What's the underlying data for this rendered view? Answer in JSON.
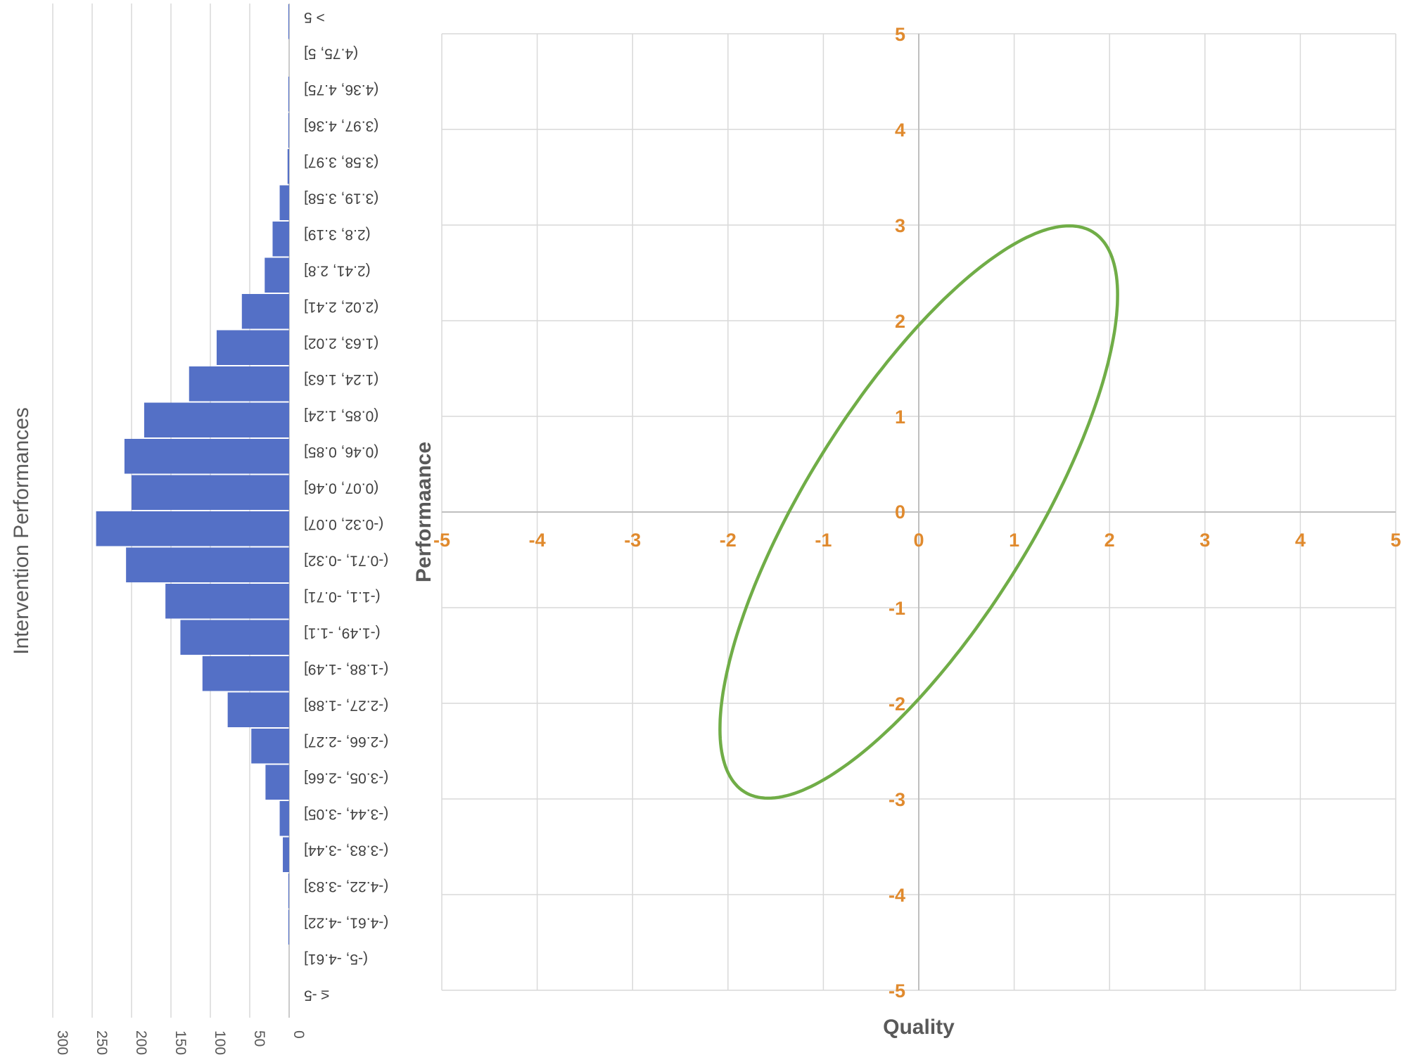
{
  "chart_data": [
    {
      "type": "bar",
      "orientation": "horizontal",
      "title": "",
      "ylabel": "Intervention Performances",
      "xlim": [
        0,
        300
      ],
      "x_ticks": [
        "0",
        "50",
        "100",
        "150",
        "200",
        "250",
        "300"
      ],
      "grid": true,
      "bar_color": "#5470c6",
      "categories": [
        "> 5",
        "(4.75, 5]",
        "(4.36, 4.75]",
        "(3.97, 4.36]",
        "(3.58, 3.97]",
        "(3.19, 3.58]",
        "(2.8, 3.19]",
        "(2.41, 2.8]",
        "(2.02, 2.41]",
        "(1.63, 2.02]",
        "(1.24, 1.63]",
        "(0.85, 1.24]",
        "(0.46, 0.85]",
        "(0.07, 0.46]",
        "(-0.32, 0.07]",
        "(-0.71, -0.32]",
        "(-1.1, -0.71]",
        "(-1.49, -1.1]",
        "(-1.88, -1.49]",
        "(-2.27, -1.88]",
        "(-2.66, -2.27]",
        "(-3.05, -2.66]",
        "(-3.44, -3.05]",
        "(-3.83, -3.44]",
        "(-4.22, -3.83]",
        "(-4.61, -4.22]",
        "(-5, -4.61]",
        "≤ -5"
      ],
      "values": [
        1,
        0,
        1,
        1,
        2,
        12,
        21,
        31,
        60,
        92,
        127,
        184,
        209,
        200,
        245,
        207,
        157,
        138,
        110,
        78,
        48,
        30,
        12,
        8,
        1,
        1,
        0,
        0
      ]
    },
    {
      "type": "line",
      "shape": "ellipse",
      "xlabel": "Quality",
      "ylabel": "Performaance",
      "xlim": [
        -5,
        5
      ],
      "ylim": [
        -5,
        5
      ],
      "x_ticks": [
        "-5",
        "-4",
        "-3",
        "-2",
        "-1",
        "0",
        "1",
        "2",
        "3",
        "4",
        "5"
      ],
      "y_ticks": [
        "-5",
        "-4",
        "-3",
        "-2",
        "-1",
        "0",
        "1",
        "2",
        "3",
        "4",
        "5"
      ],
      "grid": true,
      "line_color": "#70ad47",
      "tick_color": "#e08a2e",
      "ellipse": {
        "center": [
          0,
          0
        ],
        "semi_major": 3.45,
        "semi_minor": 1.18,
        "angle_deg": 58
      }
    }
  ]
}
